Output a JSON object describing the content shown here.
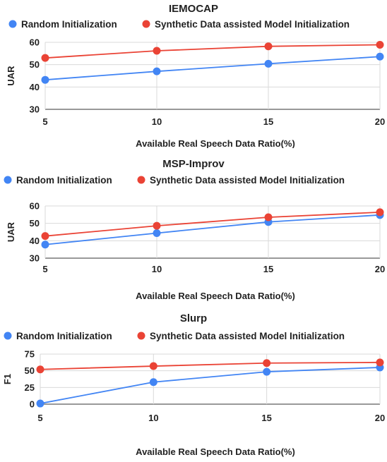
{
  "chart_data": [
    {
      "type": "line",
      "title": "IEMOCAP",
      "xlabel": "Available Real Speech Data Ratio(%)",
      "ylabel": "UAR",
      "categories": [
        "5",
        "10",
        "15",
        "20"
      ],
      "x": [
        5,
        10,
        15,
        20
      ],
      "ylim": [
        30,
        60
      ],
      "yticks": [
        30,
        40,
        50,
        60
      ],
      "grid": true,
      "legend": "top",
      "series": [
        {
          "name": "Random Initialization",
          "color": "#4285f4",
          "values": [
            43.2,
            47.0,
            50.4,
            53.6
          ]
        },
        {
          "name": "Synthetic Data assisted Model Initialization",
          "color": "#ea4335",
          "values": [
            53.0,
            56.2,
            58.2,
            58.9
          ]
        }
      ]
    },
    {
      "type": "line",
      "title": "MSP-Improv",
      "xlabel": "Available Real Speech Data Ratio(%)",
      "ylabel": "UAR",
      "categories": [
        "5",
        "10",
        "15",
        "20"
      ],
      "x": [
        5,
        10,
        15,
        20
      ],
      "ylim": [
        30,
        60
      ],
      "yticks": [
        30,
        40,
        50,
        60
      ],
      "grid": true,
      "legend": "top",
      "series": [
        {
          "name": "Random Initialization",
          "color": "#4285f4",
          "values": [
            37.8,
            44.4,
            50.8,
            54.8
          ]
        },
        {
          "name": "Synthetic Data assisted Model Initialization",
          "color": "#ea4335",
          "values": [
            42.7,
            48.6,
            53.5,
            56.4
          ]
        }
      ]
    },
    {
      "type": "line",
      "title": "Slurp",
      "xlabel": "Available Real Speech Data Ratio(%)",
      "ylabel": "F1",
      "categories": [
        "5",
        "10",
        "15",
        "20"
      ],
      "x": [
        5,
        10,
        15,
        20
      ],
      "ylim": [
        0,
        75
      ],
      "yticks": [
        0,
        25,
        50,
        75
      ],
      "grid": true,
      "legend": "top",
      "series": [
        {
          "name": "Random Initialization",
          "color": "#4285f4",
          "values": [
            1.0,
            33.0,
            48.5,
            55.0
          ]
        },
        {
          "name": "Synthetic Data assisted Model Initialization",
          "color": "#ea4335",
          "values": [
            52.0,
            57.0,
            61.5,
            62.5
          ]
        }
      ]
    }
  ]
}
